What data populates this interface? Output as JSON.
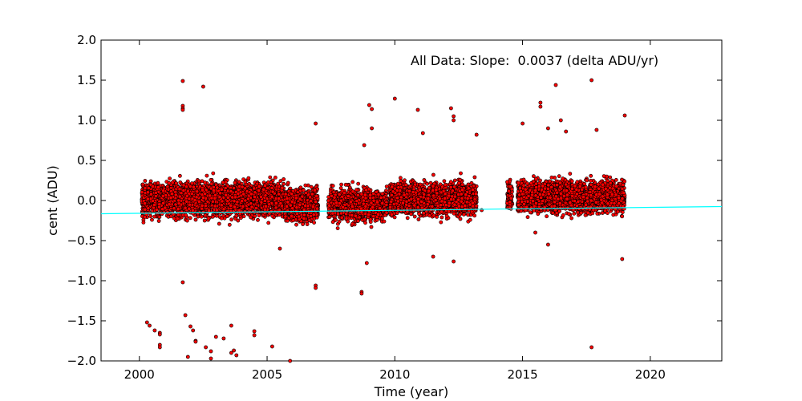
{
  "chart_data": {
    "type": "scatter",
    "title": "",
    "xlabel": "Time (year)",
    "ylabel": "cent (ADU)",
    "xlim": [
      1998.5,
      2022.8
    ],
    "ylim": [
      -2.0,
      2.0
    ],
    "x_ticks": [
      2000,
      2005,
      2010,
      2015,
      2020
    ],
    "x_tick_labels": [
      "2000",
      "2005",
      "2010",
      "2015",
      "2020"
    ],
    "y_ticks": [
      -2.0,
      -1.5,
      -1.0,
      -0.5,
      0.0,
      0.5,
      1.0,
      1.5,
      2.0
    ],
    "y_tick_labels": [
      "−2.0",
      "−1.5",
      "−1.0",
      "−0.5",
      "0.0",
      "0.5",
      "1.0",
      "1.5",
      "2.0"
    ],
    "annotation": "All Data: Slope:  0.0037 (delta ADU/yr)",
    "grid": false,
    "legend": "none",
    "colors": {
      "points": "#ff0000",
      "point_edge": "#000000",
      "fit_line": "#00ffff"
    },
    "fit_line": {
      "slope": 0.0037,
      "x": [
        1998.5,
        2022.8
      ],
      "y": [
        -0.165,
        -0.075
      ]
    },
    "dense_ranges": [
      {
        "x": [
          2000.1,
          2005.7
        ],
        "center": 0.02,
        "spread": 0.26
      },
      {
        "x": [
          2005.7,
          2007.0
        ],
        "center": -0.05,
        "spread": 0.24
      },
      {
        "x": [
          2007.4,
          2009.7
        ],
        "center": -0.05,
        "spread": 0.24
      },
      {
        "x": [
          2009.8,
          2013.2
        ],
        "center": 0.02,
        "spread": 0.24
      },
      {
        "x": [
          2014.4,
          2014.6
        ],
        "center": 0.05,
        "spread": 0.22
      },
      {
        "x": [
          2014.8,
          2019.0
        ],
        "center": 0.05,
        "spread": 0.24
      }
    ],
    "outliers": [
      [
        2001.7,
        1.49
      ],
      [
        2002.5,
        1.42
      ],
      [
        2001.7,
        1.18
      ],
      [
        2001.7,
        1.15
      ],
      [
        2001.7,
        1.13
      ],
      [
        2006.9,
        0.96
      ],
      [
        2009.0,
        1.19
      ],
      [
        2009.1,
        1.14
      ],
      [
        2010.0,
        1.27
      ],
      [
        2010.9,
        1.13
      ],
      [
        2012.2,
        1.15
      ],
      [
        2012.3,
        1.05
      ],
      [
        2012.3,
        1.0
      ],
      [
        2013.2,
        0.82
      ],
      [
        2011.1,
        0.84
      ],
      [
        2015.0,
        0.96
      ],
      [
        2015.7,
        1.22
      ],
      [
        2015.7,
        1.17
      ],
      [
        2016.3,
        1.44
      ],
      [
        2017.7,
        1.5
      ],
      [
        2016.0,
        0.9
      ],
      [
        2016.5,
        1.0
      ],
      [
        2016.7,
        0.86
      ],
      [
        2017.9,
        0.88
      ],
      [
        2019.0,
        1.06
      ],
      [
        2009.1,
        0.9
      ],
      [
        2008.8,
        0.69
      ],
      [
        2001.7,
        -1.02
      ],
      [
        2001.8,
        -1.43
      ],
      [
        2006.9,
        -1.06
      ],
      [
        2006.9,
        -1.09
      ],
      [
        2008.7,
        -1.14
      ],
      [
        2008.7,
        -1.16
      ],
      [
        2008.9,
        -0.78
      ],
      [
        2013.4,
        -0.12
      ],
      [
        2000.3,
        -1.52
      ],
      [
        2000.4,
        -1.56
      ],
      [
        2000.6,
        -1.62
      ],
      [
        2000.8,
        -1.65
      ],
      [
        2000.8,
        -1.67
      ],
      [
        2000.8,
        -1.8
      ],
      [
        2000.8,
        -1.83
      ],
      [
        2002.0,
        -1.57
      ],
      [
        2002.1,
        -1.62
      ],
      [
        2002.2,
        -1.75
      ],
      [
        2002.2,
        -1.76
      ],
      [
        2001.9,
        -1.95
      ],
      [
        2002.6,
        -1.83
      ],
      [
        2002.8,
        -1.88
      ],
      [
        2002.8,
        -1.97
      ],
      [
        2003.0,
        -1.7
      ],
      [
        2003.3,
        -1.72
      ],
      [
        2003.6,
        -1.56
      ],
      [
        2003.7,
        -1.87
      ],
      [
        2003.6,
        -1.9
      ],
      [
        2003.8,
        -1.93
      ],
      [
        2004.5,
        -1.63
      ],
      [
        2004.5,
        -1.68
      ],
      [
        2005.2,
        -1.82
      ],
      [
        2005.9,
        -2.0
      ],
      [
        2017.7,
        -1.83
      ],
      [
        2005.5,
        -0.6
      ],
      [
        2011.5,
        -0.7
      ],
      [
        2012.3,
        -0.76
      ],
      [
        2018.9,
        -0.73
      ],
      [
        2016.0,
        -0.55
      ],
      [
        2015.5,
        -0.4
      ]
    ]
  }
}
